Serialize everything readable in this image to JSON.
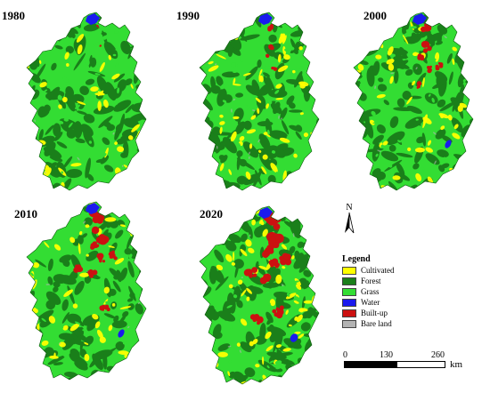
{
  "panels": [
    {
      "year": "1980",
      "builtup_level": 0,
      "water_level": 0
    },
    {
      "year": "1990",
      "builtup_level": 1,
      "water_level": 0
    },
    {
      "year": "2000",
      "builtup_level": 2,
      "water_level": 1
    },
    {
      "year": "2010",
      "builtup_level": 3,
      "water_level": 1
    },
    {
      "year": "2020",
      "builtup_level": 4,
      "water_level": 2
    }
  ],
  "legend": {
    "title": "Legend",
    "items": [
      {
        "label": "Cultivated",
        "color": "#ffff00"
      },
      {
        "label": "Forest",
        "color": "#1a7f1a"
      },
      {
        "label": "Grass",
        "color": "#33dd33"
      },
      {
        "label": "Water",
        "color": "#1a1aee"
      },
      {
        "label": "Built-up",
        "color": "#cc1111"
      },
      {
        "label": "Bare land",
        "color": "#b3b3b3"
      }
    ]
  },
  "north_arrow": {
    "label": "N"
  },
  "scale": {
    "ticks": [
      "0",
      "130",
      "260"
    ],
    "unit": "km"
  }
}
